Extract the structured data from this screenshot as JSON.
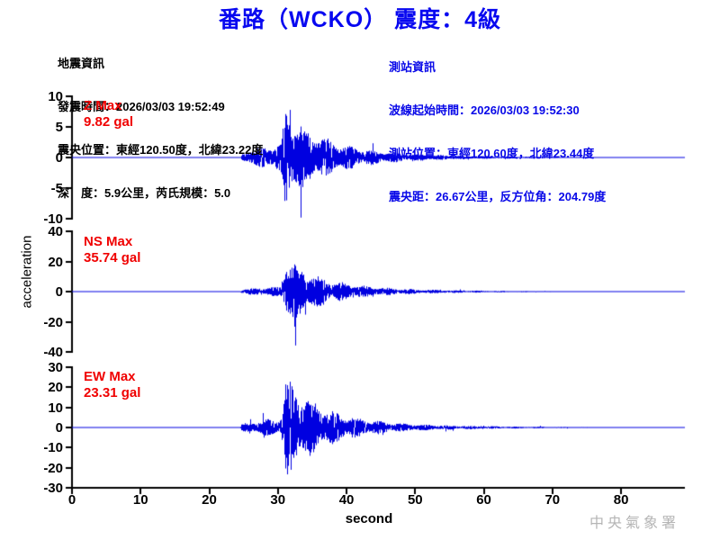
{
  "title": "番路（WCKO） 震度：4級",
  "colors": {
    "title_blue": "#0808f0",
    "info_blue": "#0808e8",
    "red": "#f00000",
    "black": "#000000",
    "waveform_blue": "#0000e0",
    "watermark_gray": "#b5b5b5"
  },
  "event_info": {
    "heading": "地震資訊",
    "lines": [
      "發震時間：2026/03/03 19:52:49",
      "震央位置：東經120.50度，北緯23.22度",
      "深　度：5.9公里，芮氏規模：5.0"
    ]
  },
  "station_info": {
    "heading": "測站資訊",
    "lines": [
      "波線起始時間：2026/03/03 19:52:30",
      "測站位置：東經120.60度，北緯23.44度",
      "震央距：26.67公里，反方位角：204.79度"
    ]
  },
  "watermark": "中央氣象署",
  "chart_data": {
    "type": "line",
    "title": "番路（WCKO） 震度：4級",
    "xlabel": "second",
    "ylabel": "acceleration",
    "x_ticks": [
      0,
      10,
      20,
      30,
      40,
      50,
      60,
      70,
      80
    ],
    "x_range": [
      0,
      89.3
    ],
    "grid": false,
    "sample_rate_hz": 50,
    "event": {
      "p_onset_s": 24.6,
      "s_rise_s": 30.2,
      "s_peak_s": 31.1,
      "coda_fast_tau_s": 5.2,
      "coda_slow_tau_s": 16
    },
    "channels": [
      {
        "name": "Z",
        "max_label_title": "Z Max",
        "max_label_value": "9.82 gal",
        "max_gal": 9.82,
        "ylim": [
          -10,
          10
        ],
        "y_ticks": [
          10,
          5,
          0,
          -5,
          -10
        ],
        "p_level": 0.28,
        "seed": 3
      },
      {
        "name": "NS",
        "max_label_title": "NS Max",
        "max_label_value": "35.74 gal",
        "max_gal": 35.74,
        "ylim": [
          -40,
          40
        ],
        "y_ticks": [
          40,
          20,
          0,
          -20,
          -40
        ],
        "p_level": 0.14,
        "seed": 7
      },
      {
        "name": "EW",
        "max_label_title": "EW Max",
        "max_label_value": "23.31 gal",
        "max_gal": 23.31,
        "ylim": [
          -30,
          30
        ],
        "y_ticks": [
          30,
          20,
          10,
          0,
          -10,
          -20,
          -30
        ],
        "p_level": 0.18,
        "seed": 11
      }
    ]
  }
}
